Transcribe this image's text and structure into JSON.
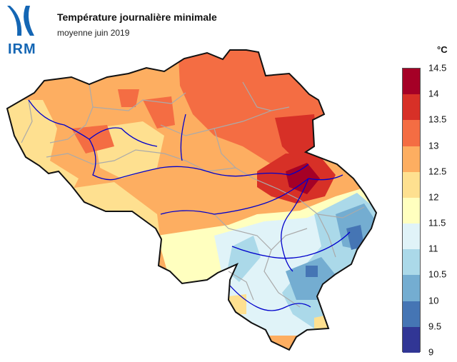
{
  "header": {
    "title": "Température journalière minimale",
    "subtitle": "moyenne juin 2019"
  },
  "logo": {
    "text": "IRM",
    "color": "#1466b4"
  },
  "legend": {
    "unit": "°C",
    "bins": [
      {
        "label": "14.5",
        "color": "#a50026"
      },
      {
        "label": "14",
        "color": "#d73027"
      },
      {
        "label": "13.5",
        "color": "#f46d43"
      },
      {
        "label": "13",
        "color": "#fdae61"
      },
      {
        "label": "12.5",
        "color": "#fee090"
      },
      {
        "label": "12",
        "color": "#ffffbf"
      },
      {
        "label": "11.5",
        "color": "#e0f3f8"
      },
      {
        "label": "11",
        "color": "#abd9e9"
      },
      {
        "label": "10.5",
        "color": "#74add1"
      },
      {
        "label": "10",
        "color": "#4575b4"
      },
      {
        "label": "9.5",
        "color": "#313695"
      }
    ],
    "bottom_label": "9"
  },
  "map_colors": {
    "border": "#111111",
    "rivers": "#0000cc",
    "regions": "#aaaaaa"
  }
}
